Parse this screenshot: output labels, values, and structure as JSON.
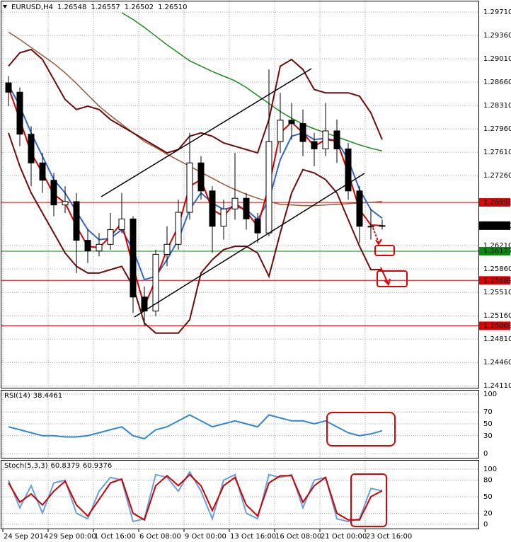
{
  "chart_data": [
    {
      "type": "candlestick",
      "title": "EURUSD,H4",
      "header_values": [
        1.26548,
        1.26557,
        1.26502,
        {
          "value": 1.2651,
          "label": "1.26510"
        }
      ],
      "categories": [
        "24 Sep 2014",
        null,
        null,
        null,
        "29 Sep 00:00",
        null,
        null,
        null,
        "1 Oct 16:00",
        null,
        null,
        null,
        "6 Oct 08:00",
        null,
        null,
        null,
        "9 Oct 00:00",
        null,
        null,
        null,
        "13 Oct 16:00",
        null,
        null,
        null,
        "16 Oct 08:00",
        null,
        null,
        null,
        "21 Oct 00:00",
        null,
        null,
        null,
        "23 Oct 16:00",
        null
      ],
      "open": [
        1.2865,
        1.2851,
        1.2788,
        1.2745,
        1.2719,
        1.2682,
        1.2687,
        1.2629,
        1.2613,
        1.2623,
        1.2645,
        1.2661,
        1.2544,
        1.2523,
        1.2608,
        1.2623,
        1.2671,
        1.2745,
        1.2703,
        1.265,
        1.2676,
        1.2692,
        1.2661,
        1.264,
        1.2777,
        1.2809,
        1.2804,
        1.2777,
        1.2766,
        1.2793,
        1.2766,
        1.2703,
        1.265,
        1.265
      ],
      "high": [
        1.2875,
        1.2858,
        1.28,
        1.276,
        1.273,
        1.271,
        1.27,
        1.2645,
        1.264,
        1.267,
        1.27,
        1.2665,
        1.256,
        1.2615,
        1.265,
        1.269,
        1.279,
        1.2755,
        1.271,
        1.269,
        1.276,
        1.27,
        1.267,
        1.2885,
        1.285,
        1.2835,
        1.2825,
        1.279,
        1.2835,
        1.281,
        1.2775,
        1.271,
        1.2675,
        1.266
      ],
      "low": [
        1.283,
        1.277,
        1.271,
        1.27,
        1.2665,
        1.267,
        1.258,
        1.2595,
        1.2605,
        1.2615,
        1.264,
        1.252,
        1.25,
        1.2515,
        1.259,
        1.2615,
        1.266,
        1.269,
        1.261,
        1.263,
        1.266,
        1.2645,
        1.2625,
        1.2635,
        1.276,
        1.278,
        1.2755,
        1.274,
        1.2755,
        1.2745,
        1.269,
        1.2625,
        1.263,
        1.2645
      ],
      "close": [
        1.2851,
        1.2788,
        1.2745,
        1.2719,
        1.2682,
        1.2687,
        1.2629,
        1.2613,
        1.2623,
        1.2645,
        1.2661,
        1.2544,
        1.2523,
        1.2608,
        1.2623,
        1.2671,
        1.2745,
        1.2703,
        1.265,
        1.2676,
        1.2692,
        1.2661,
        1.264,
        1.2777,
        1.2809,
        1.2804,
        1.2777,
        1.2766,
        1.2793,
        1.2766,
        1.2703,
        1.265,
        1.265,
        1.2651
      ],
      "up_color": "#ffffff",
      "down_color": "#000000",
      "series": [
        {
          "color": "#1e8c1e",
          "values": [
            null,
            null,
            null,
            null,
            null,
            null,
            null,
            null,
            null,
            null,
            1.297,
            1.296,
            1.2948,
            1.2935,
            1.2922,
            1.291,
            1.2898,
            1.289,
            1.2882,
            1.2875,
            1.2868,
            1.2858,
            1.2846,
            1.2834,
            1.2822,
            1.2812,
            1.2803,
            1.2796,
            1.279,
            1.2784,
            1.2778,
            1.2772,
            1.2767,
            1.2763
          ]
        },
        {
          "color": "#9a5a36",
          "values": [
            1.2941,
            1.293,
            1.2918,
            1.2906,
            1.2894,
            1.288,
            1.2864,
            1.2847,
            1.283,
            1.2816,
            1.2803,
            1.279,
            1.2777,
            1.2768,
            1.2758,
            1.2749,
            1.274,
            1.2731,
            1.2722,
            1.2713,
            1.2705,
            1.2698,
            1.2692,
            1.2687,
            1.2683,
            1.2682,
            1.2681,
            1.2681,
            1.2682,
            1.2683,
            1.2684,
            1.2685,
            1.2686,
            1.2687
          ]
        },
        {
          "color": "#6e0a0a",
          "values": [
            1.289,
            1.291,
            1.2915,
            1.29,
            1.287,
            1.284,
            1.2825,
            1.283,
            1.2825,
            1.281,
            1.28,
            1.279,
            1.278,
            1.277,
            1.276,
            1.2765,
            1.2785,
            1.279,
            1.2785,
            1.2775,
            1.277,
            1.2765,
            1.276,
            1.281,
            1.289,
            1.29,
            1.2885,
            1.2855,
            1.285,
            1.285,
            1.285,
            1.2845,
            1.282,
            1.278
          ]
        },
        {
          "color": "#6e0a0a",
          "values": [
            1.279,
            1.274,
            1.27,
            1.267,
            1.264,
            1.261,
            1.259,
            1.258,
            1.258,
            1.2585,
            1.259,
            1.256,
            1.2505,
            1.249,
            1.249,
            1.249,
            1.251,
            1.258,
            1.26,
            1.2615,
            1.262,
            1.262,
            1.261,
            1.2575,
            1.264,
            1.27,
            1.2735,
            1.273,
            1.272,
            1.27,
            1.266,
            1.262,
            1.2585,
            1.2585
          ]
        },
        {
          "color": "#3366cc",
          "values": [
            1.2862,
            1.283,
            1.279,
            1.2755,
            1.272,
            1.27,
            1.2672,
            1.2645,
            1.263,
            1.2632,
            1.2645,
            1.2615,
            1.257,
            1.2575,
            1.26,
            1.263,
            1.2675,
            1.27,
            1.2685,
            1.2675,
            1.268,
            1.2675,
            1.266,
            1.269,
            1.275,
            1.2785,
            1.279,
            1.278,
            1.2782,
            1.2778,
            1.275,
            1.2705,
            1.2675,
            1.2662
          ]
        },
        {
          "color": "#d40000",
          "values": [
            1.2858,
            1.281,
            1.276,
            1.273,
            1.2698,
            1.2685,
            1.265,
            1.262,
            1.2618,
            1.2635,
            1.2655,
            1.259,
            1.253,
            1.257,
            1.2615,
            1.265,
            1.271,
            1.272,
            1.2675,
            1.2665,
            1.2685,
            1.2672,
            1.265,
            1.271,
            1.279,
            1.2806,
            1.279,
            1.277,
            1.278,
            1.2778,
            1.273,
            1.2675,
            1.2652,
            1.2651
          ]
        }
      ],
      "ylim": [
        1.2407,
        1.2987
      ],
      "yticks": [
        {
          "value": 1.2971,
          "label": "1.29710"
        },
        {
          "value": 1.2936,
          "label": "1.29360"
        },
        {
          "value": 1.2901,
          "label": "1.29010"
        },
        {
          "value": 1.2866,
          "label": "1.28660"
        },
        {
          "value": 1.2831,
          "label": "1.28310"
        },
        {
          "value": 1.2796,
          "label": "1.27960"
        },
        {
          "value": 1.2761,
          "label": "1.27610"
        },
        {
          "value": 1.2726,
          "label": "1.27260"
        },
        {
          "value": 1.2621,
          "label": "1.26210"
        },
        {
          "value": 1.2586,
          "label": "1.25860"
        },
        {
          "value": 1.2551,
          "label": "1.25510"
        },
        {
          "value": 1.2516,
          "label": "1.25160"
        },
        {
          "value": 1.2481,
          "label": "1.24810"
        },
        {
          "value": 1.2446,
          "label": "1.24460"
        },
        {
          "value": 1.2411,
          "label": "1.24110"
        }
      ],
      "price_lines": [
        {
          "value": 1.26858,
          "label": "1.26858",
          "color": "#e00000"
        },
        {
          "value": 1.26127,
          "label": "1.26127",
          "color": "#0a8a0a"
        },
        {
          "value": 1.25689,
          "label": "1.25689",
          "color": "#e00000"
        },
        {
          "value": 1.25009,
          "label": "1.25009",
          "color": "#e00000"
        },
        {
          "value": 1.2651,
          "label": "1.26510",
          "color": "#000000"
        }
      ],
      "grid": true
    },
    {
      "type": "line",
      "title": "RSI(14)",
      "title_value": 38.4461,
      "series": [
        {
          "color": "#2f86d6",
          "values": [
            45,
            40,
            35,
            30,
            30,
            28,
            28,
            30,
            35,
            40,
            45,
            30,
            25,
            40,
            45,
            55,
            65,
            55,
            45,
            50,
            55,
            50,
            45,
            65,
            60,
            55,
            55,
            50,
            55,
            45,
            35,
            30,
            33,
            38.4461
          ]
        }
      ],
      "ylim": [
        0,
        100
      ],
      "yticks": [
        100,
        70,
        50,
        30,
        0
      ],
      "grid": true
    },
    {
      "type": "line",
      "title": "Stoch(5,3,3)",
      "title_values": [
        60.8379,
        60.9376
      ],
      "series": [
        {
          "color": "#6a9ee0",
          "values": [
            80,
            30,
            70,
            20,
            75,
            80,
            20,
            10,
            60,
            85,
            80,
            5,
            10,
            90,
            85,
            60,
            95,
            60,
            10,
            80,
            90,
            20,
            10,
            90,
            85,
            90,
            30,
            80,
            85,
            10,
            5,
            10,
            65,
            60.8379
          ]
        },
        {
          "color": "#cc0000",
          "values": [
            75,
            40,
            55,
            35,
            60,
            78,
            35,
            15,
            45,
            75,
            82,
            20,
            8,
            70,
            88,
            70,
            90,
            70,
            25,
            70,
            85,
            35,
            15,
            75,
            88,
            88,
            40,
            70,
            85,
            20,
            8,
            8,
            50,
            60.9376
          ]
        }
      ],
      "ylim": [
        0,
        100
      ],
      "yticks": [
        100,
        80,
        50,
        20,
        0
      ],
      "grid": true
    }
  ]
}
